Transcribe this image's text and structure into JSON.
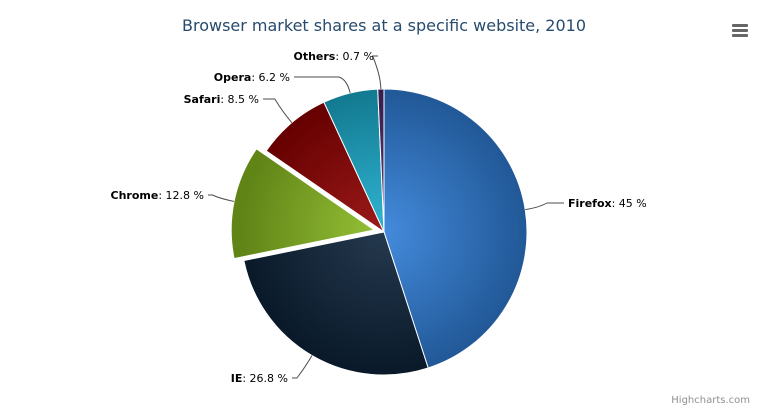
{
  "chart_data": {
    "type": "pie",
    "title": "Browser market shares at a specific website, 2010",
    "label_format": "{name}: {value} %",
    "slices": [
      {
        "name": "Firefox",
        "value": 45,
        "color": "#2f7ed8",
        "sliced": false
      },
      {
        "name": "IE",
        "value": 26.8,
        "color": "#0d233a",
        "sliced": false
      },
      {
        "name": "Chrome",
        "value": 12.8,
        "color": "#8bbc21",
        "sliced": true
      },
      {
        "name": "Safari",
        "value": 8.5,
        "color": "#910000",
        "sliced": false
      },
      {
        "name": "Opera",
        "value": 6.2,
        "color": "#1aadce",
        "sliced": false
      },
      {
        "name": "Others",
        "value": 0.7,
        "color": "#492970",
        "sliced": false
      }
    ]
  },
  "menu": {
    "icon": "hamburger-menu-icon"
  },
  "credits": "Highcharts.com"
}
